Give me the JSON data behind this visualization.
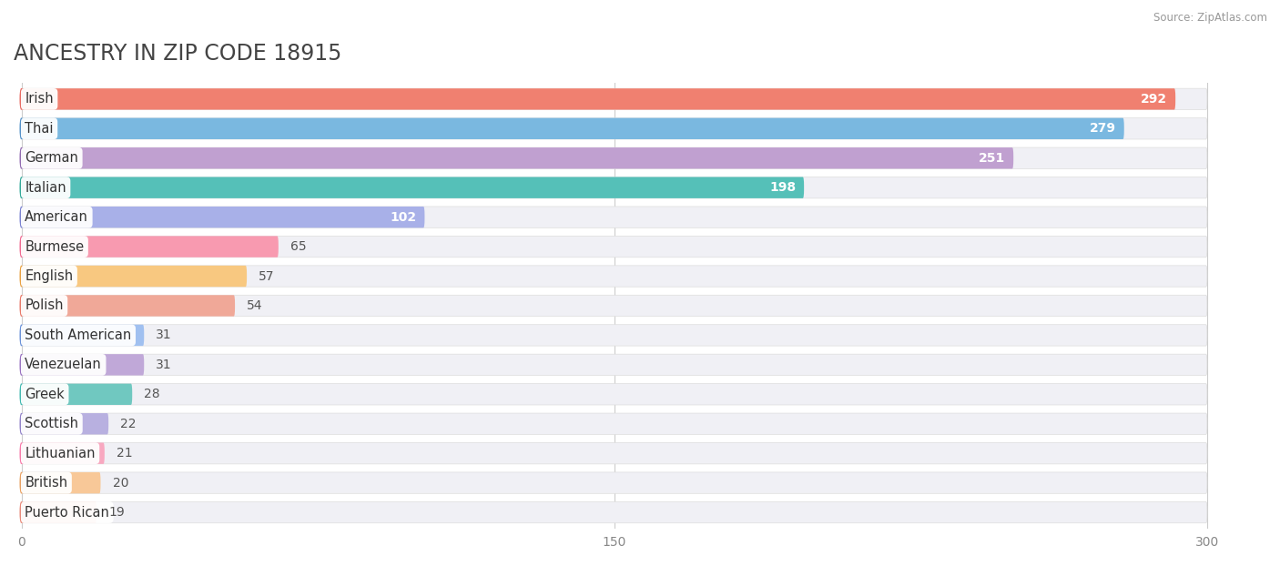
{
  "title": "ANCESTRY IN ZIP CODE 18915",
  "source": "Source: ZipAtlas.com",
  "categories": [
    "Irish",
    "Thai",
    "German",
    "Italian",
    "American",
    "Burmese",
    "English",
    "Polish",
    "South American",
    "Venezuelan",
    "Greek",
    "Scottish",
    "Lithuanian",
    "British",
    "Puerto Rican"
  ],
  "values": [
    292,
    279,
    251,
    198,
    102,
    65,
    57,
    54,
    31,
    31,
    28,
    22,
    21,
    20,
    19
  ],
  "bar_colors": [
    "#F08070",
    "#7AB8E0",
    "#C0A0D0",
    "#55C0B8",
    "#A8B0E8",
    "#F89AB0",
    "#F8C880",
    "#F0A898",
    "#A0C0F0",
    "#C0A8D8",
    "#70C8C0",
    "#B8B0E0",
    "#F8A8C0",
    "#F8C898",
    "#F0B0A0"
  ],
  "circle_colors": [
    "#E86860",
    "#5090C8",
    "#9068B0",
    "#30A898",
    "#7880D0",
    "#F06890",
    "#E8A040",
    "#E87868",
    "#6890D8",
    "#9870C0",
    "#40B8B0",
    "#9080C8",
    "#F878A8",
    "#E8A060",
    "#E88878"
  ],
  "xlim": [
    0,
    300
  ],
  "xticks": [
    0,
    150,
    300
  ],
  "background_color": "#ffffff",
  "row_bg_color": "#f0f0f5",
  "title_fontsize": 17,
  "label_fontsize": 10.5,
  "value_fontsize": 10
}
